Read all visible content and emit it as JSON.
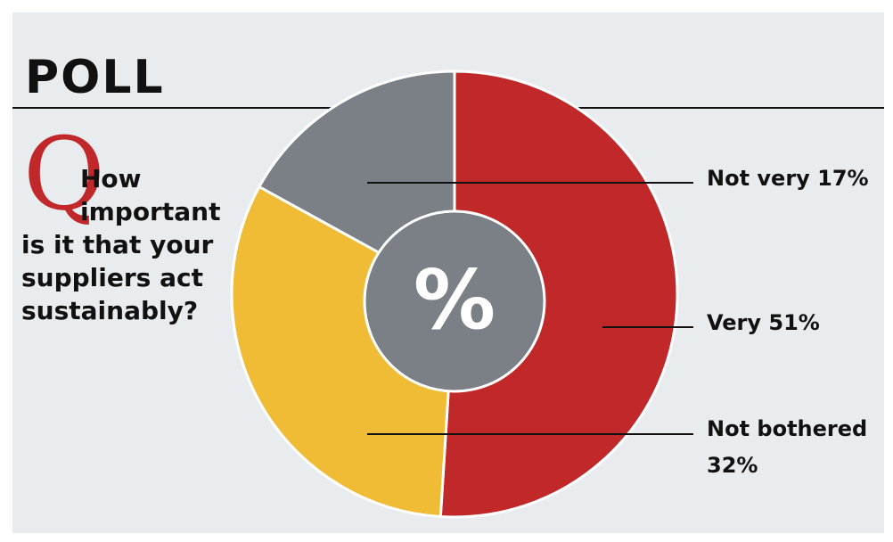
{
  "title": "POLL",
  "question": {
    "letter": "Q",
    "line1": "How",
    "line2": "important",
    "line3": "is it that your",
    "line4": "suppliers act",
    "line5": "sustainably?"
  },
  "center_label": "%",
  "colors": {
    "background": "#e9ecee",
    "very": "#c0282a",
    "not_bothered": "#f0bb35",
    "not_very": "#7b8086",
    "center": "#7b8086"
  },
  "chart_data": {
    "type": "pie",
    "title": "How important is it that your suppliers act sustainably?",
    "slices": [
      {
        "label": "Very",
        "value": 51,
        "display": "Very 51%",
        "color": "#c0282a"
      },
      {
        "label": "Not bothered",
        "value": 32,
        "display_line1": "Not bothered",
        "display_line2": "32%",
        "color": "#f0bb35"
      },
      {
        "label": "Not very",
        "value": 17,
        "display": "Not very 17%",
        "color": "#7b8086"
      }
    ],
    "unit": "%"
  }
}
